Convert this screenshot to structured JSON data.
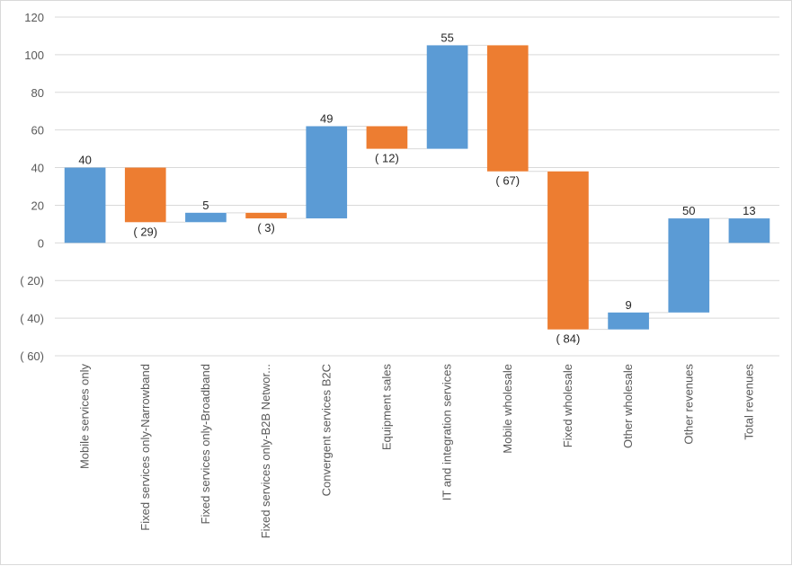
{
  "chart_data": {
    "type": "waterfall",
    "categories": [
      "Mobile services only",
      "Fixed services only-Narrowband",
      "Fixed services only-Broadband",
      "Fixed services only-B2B Networ...",
      "Convergent services B2C",
      "Equipment sales",
      "IT and integration services",
      "Mobile wholesale",
      "Fixed wholesale",
      "Other wholesale",
      "Other revenues",
      "Total revenues"
    ],
    "values": [
      40,
      -29,
      5,
      -3,
      49,
      -12,
      55,
      -67,
      -84,
      9,
      50,
      13
    ],
    "data_labels": [
      "40",
      "( 29)",
      "5",
      "( 3)",
      "49",
      "( 12)",
      "55",
      "( 67)",
      "( 84)",
      "9",
      "50",
      "13"
    ],
    "is_total": [
      false,
      false,
      false,
      false,
      false,
      false,
      false,
      false,
      false,
      false,
      false,
      true
    ],
    "ylim": [
      -60,
      120
    ],
    "yticks": [
      120,
      100,
      80,
      60,
      40,
      20,
      0,
      -20,
      -40,
      -60
    ],
    "ytick_labels": [
      "120",
      "100",
      "80",
      "60",
      "40",
      "20",
      "0",
      "( 20)",
      "( 40)",
      "( 60)"
    ],
    "grid": true,
    "colors": {
      "increase": "#5b9bd5",
      "decrease": "#ed7d31",
      "total": "#5b9bd5",
      "grid": "#d9d9d9",
      "connector": "#d9d9d9",
      "axis_text": "#595959"
    },
    "title": "",
    "xlabel": "",
    "ylabel": ""
  }
}
